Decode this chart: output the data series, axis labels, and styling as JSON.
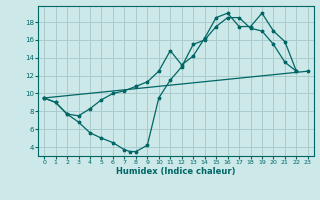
{
  "xlabel": "Humidex (Indice chaleur)",
  "bg_color": "#cce8e8",
  "grid_color": "#aacccc",
  "line_color": "#006666",
  "xlim": [
    -0.5,
    23.5
  ],
  "ylim": [
    3.0,
    19.8
  ],
  "yticks": [
    4,
    6,
    8,
    10,
    12,
    14,
    16,
    18
  ],
  "xticks": [
    0,
    1,
    2,
    3,
    4,
    5,
    6,
    7,
    8,
    9,
    10,
    11,
    12,
    13,
    14,
    15,
    16,
    17,
    18,
    19,
    20,
    21,
    22,
    23
  ],
  "line1_x": [
    0,
    23
  ],
  "line1_y": [
    9.5,
    12.5
  ],
  "line2_x": [
    0,
    1,
    2,
    3,
    4,
    5,
    6,
    7,
    7.5,
    8,
    9,
    10,
    11,
    12,
    13,
    14,
    15,
    16,
    17,
    18,
    19,
    20,
    21,
    22
  ],
  "line2_y": [
    9.5,
    9.0,
    7.7,
    6.8,
    5.6,
    5.0,
    4.5,
    3.7,
    3.5,
    3.5,
    4.2,
    9.5,
    11.5,
    13.0,
    15.5,
    16.0,
    17.5,
    18.5,
    18.5,
    17.3,
    17.0,
    15.5,
    13.5,
    12.5
  ],
  "line3_x": [
    0,
    1,
    2,
    3,
    4,
    5,
    6,
    7,
    8,
    9,
    10,
    11,
    12,
    13,
    14,
    15,
    16,
    17,
    18,
    19,
    20,
    21,
    22
  ],
  "line3_y": [
    9.5,
    9.0,
    7.7,
    7.5,
    8.3,
    9.3,
    10.0,
    10.3,
    10.8,
    11.3,
    12.5,
    14.8,
    13.2,
    14.2,
    16.2,
    18.5,
    19.0,
    17.5,
    17.5,
    19.0,
    17.0,
    15.8,
    12.5
  ]
}
